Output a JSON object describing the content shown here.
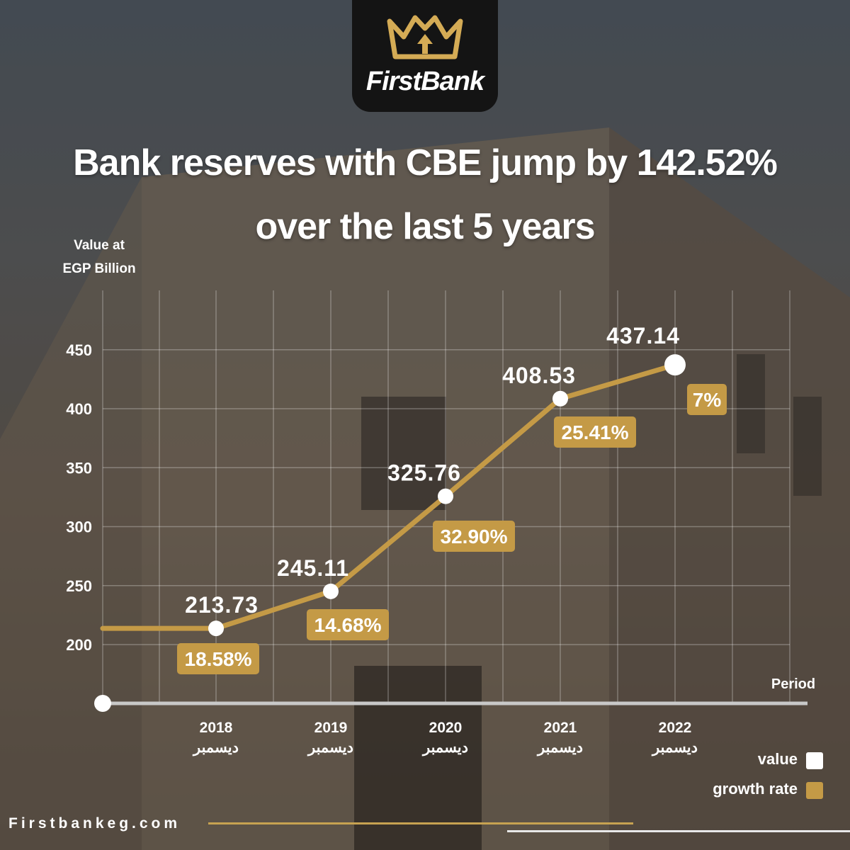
{
  "brand": {
    "name": "FirstBank"
  },
  "title_lines": [
    "Bank reserves with CBE  jump by 142.52%",
    "over the last 5 years"
  ],
  "y_axis_label_lines": [
    "Value at",
    "EGP Billion"
  ],
  "x_axis_label": "Period",
  "legend": {
    "value_label": "value",
    "growth_label": "growth rate",
    "value_color": "#ffffff",
    "growth_color": "#c49a46"
  },
  "footer": {
    "website": "Firstbankeg.com"
  },
  "colors": {
    "accent": "#c49a46",
    "line": "#c49a46",
    "point": "#ffffff"
  },
  "chart_data": {
    "type": "line",
    "title": "Bank reserves with CBE  jump by 142.52% over the last 5 years",
    "ylabel": "Value at EGP Billion",
    "xlabel": "Period",
    "yticks": [
      200,
      250,
      300,
      350,
      400,
      450
    ],
    "ylim": [
      150,
      460
    ],
    "categories": [
      {
        "year": "2018",
        "month": "ديسمبر"
      },
      {
        "year": "2019",
        "month": "ديسمبر"
      },
      {
        "year": "2020",
        "month": "ديسمبر"
      },
      {
        "year": "2021",
        "month": "ديسمبر"
      },
      {
        "year": "2022",
        "month": "ديسمبر"
      }
    ],
    "series": [
      {
        "name": "value",
        "values": [
          213.73,
          245.11,
          325.76,
          408.53,
          437.14
        ],
        "labels": [
          "213.73",
          "245.11",
          "325.76",
          "408.53",
          "437.14"
        ]
      },
      {
        "name": "growth rate",
        "values": [
          18.58,
          14.68,
          32.9,
          25.41,
          7
        ],
        "labels": [
          "18.58%",
          "14.68%",
          "32.90%",
          "25.41%",
          "7%"
        ]
      }
    ],
    "grid": true,
    "legend_position": "bottom-right"
  }
}
